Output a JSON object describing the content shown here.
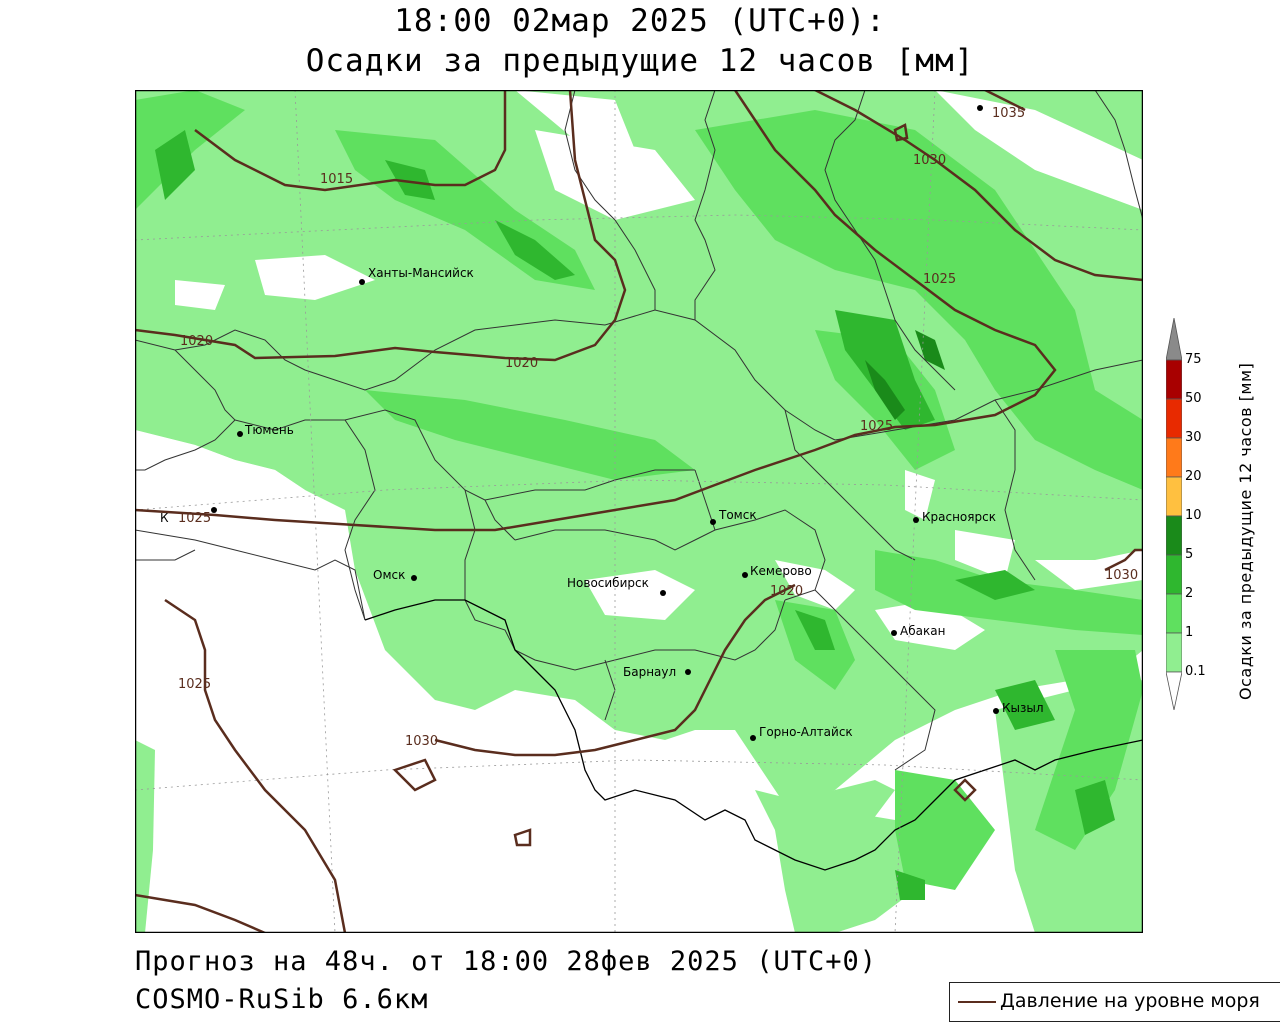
{
  "title": {
    "line1": "18:00 02мар 2025 (UTC+0):",
    "line2": "Осадки за предыдущие 12 часов [мм]"
  },
  "footer": {
    "forecast": "Прогноз на 48ч. от 18:00 28фев 2025 (UTC+0)",
    "model": "COSMO-RuSib 6.6км"
  },
  "legend": {
    "pressure_label": "Давление на уровне моря",
    "pressure_color": "#5a2d1e"
  },
  "colorbar": {
    "title": "Осадки за предыдущие 12 часов [мм]",
    "levels": [
      {
        "label": "0.1",
        "color": "#90ee90"
      },
      {
        "label": "1",
        "color": "#5fe05f"
      },
      {
        "label": "2",
        "color": "#2fb72f"
      },
      {
        "label": "5",
        "color": "#1a8a1a"
      },
      {
        "label": "10",
        "color": "#ffc040"
      },
      {
        "label": "20",
        "color": "#ff7a1a"
      },
      {
        "label": "30",
        "color": "#e82a00"
      },
      {
        "label": "50",
        "color": "#a80000"
      },
      {
        "label": "75",
        "color": "#8a8a8a"
      }
    ]
  },
  "cities": [
    {
      "name": "Ханты-Мансийск"
    },
    {
      "name": "Тюмень"
    },
    {
      "name": "К"
    },
    {
      "name": "Омск"
    },
    {
      "name": "Новосибирск"
    },
    {
      "name": "Томск"
    },
    {
      "name": "Кемерово"
    },
    {
      "name": "Барнаул"
    },
    {
      "name": "Горно-Алтайск"
    },
    {
      "name": "Красноярск"
    },
    {
      "name": "Абакан"
    },
    {
      "name": "Кызыл"
    }
  ],
  "isobars": [
    "1015",
    "1020",
    "1020",
    "1025",
    "1025",
    "1025",
    "1030",
    "1035",
    "1025",
    "1030",
    "1020",
    "1030"
  ]
}
